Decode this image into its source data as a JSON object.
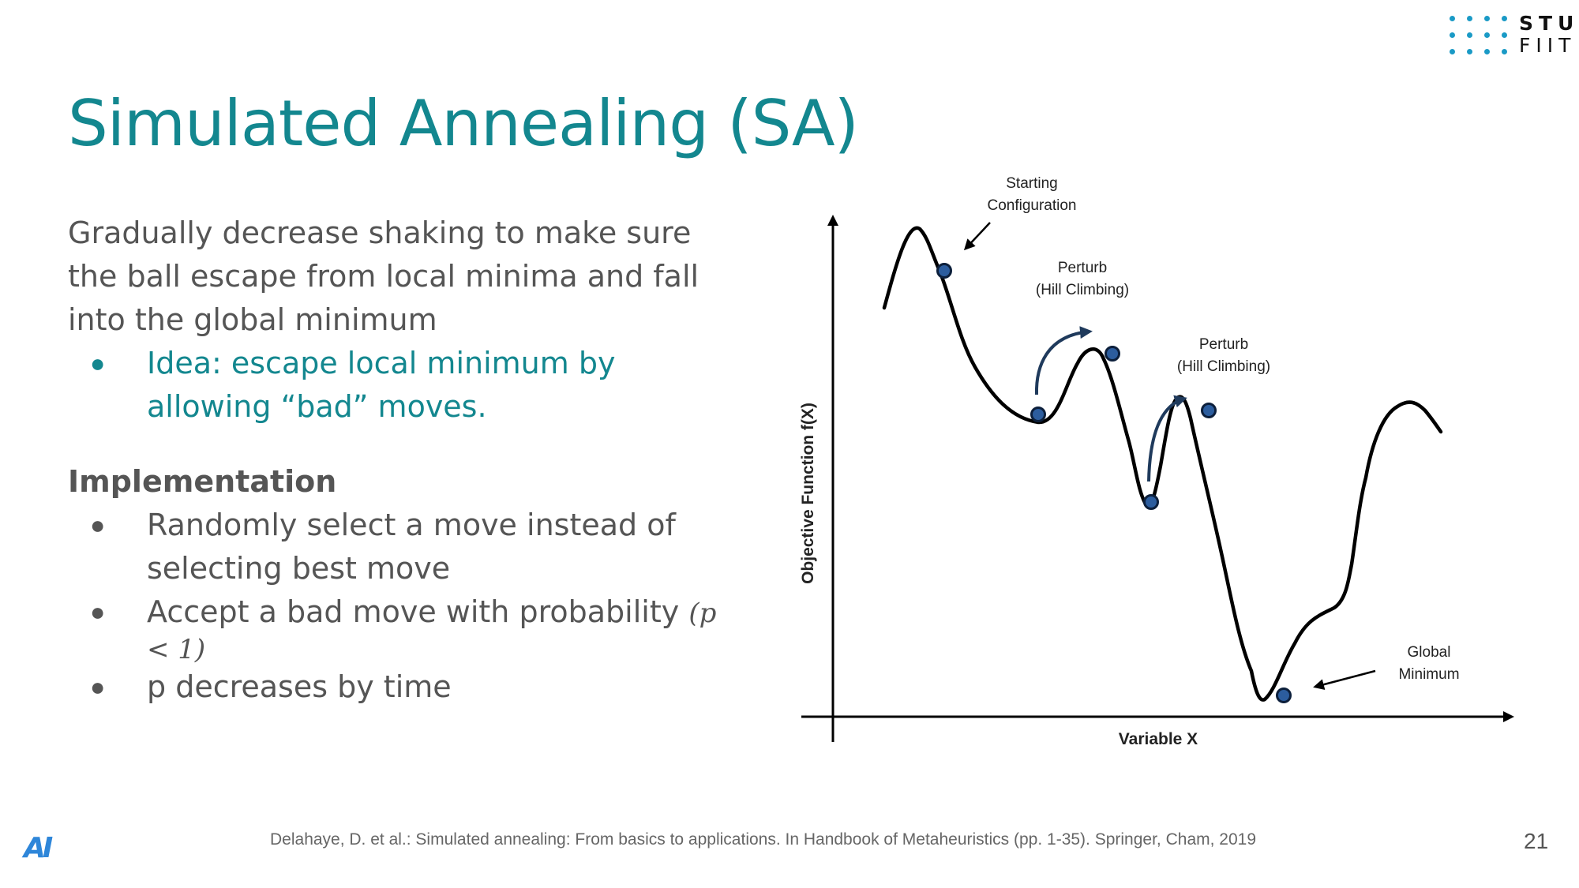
{
  "logo": {
    "top_text": "STU",
    "bottom_text": "FIIT",
    "dot_color": "#1a9ac6"
  },
  "title": "Simulated Annealing (SA)",
  "intro": "Gradually decrease shaking to make sure the ball escape from local minima and fall into the global minimum",
  "idea_bullets": [
    "Idea: escape local minimum by allowing “bad” moves."
  ],
  "implementation": {
    "heading": "Implementation",
    "bullets": [
      {
        "text": "Randomly select a move instead of selecting best move",
        "math": ""
      },
      {
        "text": "Accept a bad move with probability ",
        "math": "(p < 1)"
      },
      {
        "text": "p decreases by time",
        "math": ""
      }
    ]
  },
  "diagram": {
    "y_axis_label": "Objective Function f(X)",
    "x_axis_label": "Variable X",
    "starting_label_line1": "Starting",
    "starting_label_line2": "Configuration",
    "perturb1_line1": "Perturb",
    "perturb1_line2": "(Hill Climbing)",
    "perturb2_line1": "Perturb",
    "perturb2_line2": "(Hill Climbing)",
    "global_line1": "Global",
    "global_line2": "Minimum",
    "point_color": "#2c5d9e",
    "arrow_color": "#1f3a5c"
  },
  "citation": "Delahaye, D. et al.: Simulated annealing: From basics to applications. In Handbook of Metaheuristics (pp. 1-35). Springer, Cham, 2019",
  "page_number": "21",
  "corner_logo": "AI",
  "colors": {
    "accent": "#13878f",
    "text": "#555555"
  }
}
